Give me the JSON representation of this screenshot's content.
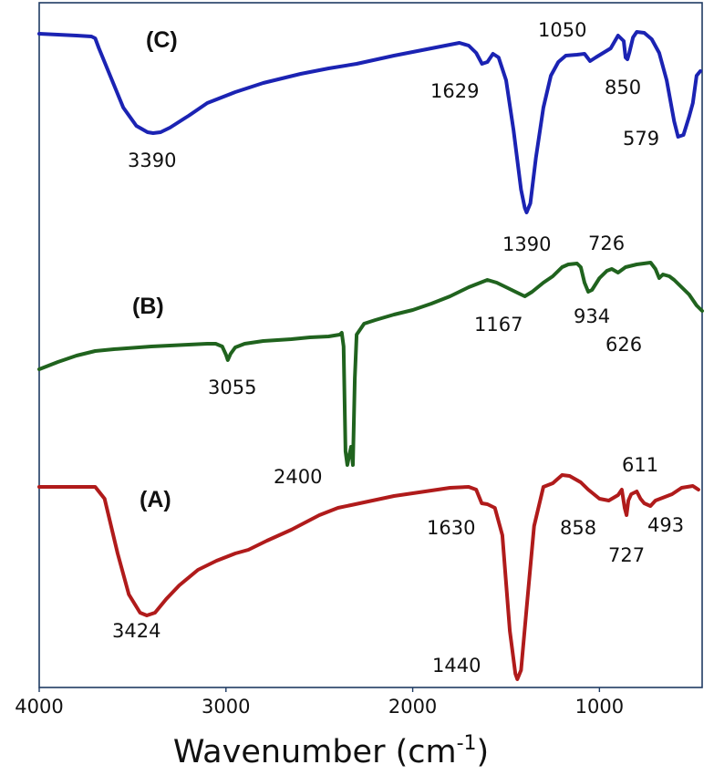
{
  "chart_data": {
    "type": "line",
    "xlabel": "Wavenumber (cm",
    "xlabel_sup": "-1",
    "xlabel_close": ")",
    "xlim": [
      4000,
      450
    ],
    "x_reversed": true,
    "ticks": [
      4000,
      3000,
      2000,
      1000
    ],
    "tick_labels": [
      "4000",
      "3000",
      "2000",
      "1000"
    ],
    "grid": false,
    "legend": "none",
    "series": [
      {
        "key": "A",
        "name": "(A)",
        "color": "#b01b1b",
        "points": [
          [
            4000,
            17
          ],
          [
            3700,
            17
          ],
          [
            3650,
            30
          ],
          [
            3580,
            90
          ],
          [
            3520,
            135
          ],
          [
            3460,
            155
          ],
          [
            3424,
            158
          ],
          [
            3380,
            155
          ],
          [
            3320,
            140
          ],
          [
            3250,
            125
          ],
          [
            3150,
            108
          ],
          [
            3050,
            98
          ],
          [
            2950,
            90
          ],
          [
            2880,
            86
          ],
          [
            2850,
            83
          ],
          [
            2780,
            76
          ],
          [
            2650,
            64
          ],
          [
            2500,
            48
          ],
          [
            2400,
            40
          ],
          [
            2330,
            37
          ],
          [
            2100,
            27
          ],
          [
            1900,
            21
          ],
          [
            1800,
            18
          ],
          [
            1700,
            17
          ],
          [
            1660,
            20
          ],
          [
            1630,
            35
          ],
          [
            1600,
            36
          ],
          [
            1560,
            40
          ],
          [
            1520,
            70
          ],
          [
            1480,
            175
          ],
          [
            1450,
            222
          ],
          [
            1440,
            228
          ],
          [
            1420,
            218
          ],
          [
            1390,
            150
          ],
          [
            1350,
            60
          ],
          [
            1300,
            17
          ],
          [
            1250,
            13
          ],
          [
            1200,
            4
          ],
          [
            1160,
            5
          ],
          [
            1100,
            12
          ],
          [
            1060,
            20
          ],
          [
            1000,
            30
          ],
          [
            950,
            32
          ],
          [
            900,
            26
          ],
          [
            880,
            20
          ],
          [
            865,
            40
          ],
          [
            855,
            48
          ],
          [
            845,
            32
          ],
          [
            830,
            25
          ],
          [
            800,
            22
          ],
          [
            780,
            30
          ],
          [
            760,
            35
          ],
          [
            727,
            38
          ],
          [
            700,
            32
          ],
          [
            611,
            25
          ],
          [
            560,
            18
          ],
          [
            500,
            16
          ],
          [
            470,
            20
          ]
        ],
        "peaks": [
          "3424",
          "2400",
          "1630",
          "1440",
          "858",
          "611",
          "727",
          "493"
        ]
      },
      {
        "key": "B",
        "name": "(B)",
        "color": "#20631e",
        "points": [
          [
            4000,
            120
          ],
          [
            3900,
            112
          ],
          [
            3800,
            105
          ],
          [
            3700,
            100
          ],
          [
            3600,
            98
          ],
          [
            3400,
            95
          ],
          [
            3200,
            93
          ],
          [
            3100,
            92
          ],
          [
            3055,
            92
          ],
          [
            3020,
            95
          ],
          [
            3000,
            104
          ],
          [
            2990,
            110
          ],
          [
            2975,
            103
          ],
          [
            2950,
            96
          ],
          [
            2900,
            92
          ],
          [
            2800,
            89
          ],
          [
            2650,
            87
          ],
          [
            2550,
            85
          ],
          [
            2450,
            84
          ],
          [
            2390,
            82
          ],
          [
            2380,
            80
          ],
          [
            2370,
            95
          ],
          [
            2360,
            210
          ],
          [
            2350,
            225
          ],
          [
            2340,
            215
          ],
          [
            2330,
            205
          ],
          [
            2320,
            225
          ],
          [
            2310,
            130
          ],
          [
            2300,
            82
          ],
          [
            2260,
            70
          ],
          [
            2200,
            66
          ],
          [
            2100,
            60
          ],
          [
            2000,
            55
          ],
          [
            1900,
            48
          ],
          [
            1800,
            40
          ],
          [
            1700,
            30
          ],
          [
            1600,
            22
          ],
          [
            1550,
            25
          ],
          [
            1500,
            30
          ],
          [
            1450,
            35
          ],
          [
            1400,
            40
          ],
          [
            1360,
            35
          ],
          [
            1300,
            25
          ],
          [
            1250,
            18
          ],
          [
            1200,
            8
          ],
          [
            1167,
            5
          ],
          [
            1120,
            4
          ],
          [
            1100,
            8
          ],
          [
            1080,
            25
          ],
          [
            1060,
            35
          ],
          [
            1040,
            33
          ],
          [
            1000,
            20
          ],
          [
            960,
            12
          ],
          [
            934,
            10
          ],
          [
            900,
            14
          ],
          [
            860,
            8
          ],
          [
            800,
            5
          ],
          [
            726,
            3
          ],
          [
            700,
            10
          ],
          [
            680,
            20
          ],
          [
            660,
            16
          ],
          [
            626,
            18
          ],
          [
            600,
            22
          ],
          [
            560,
            30
          ],
          [
            520,
            38
          ],
          [
            480,
            50
          ],
          [
            450,
            56
          ]
        ],
        "peaks": [
          "3055",
          "1167",
          "934",
          "726",
          "626"
        ]
      },
      {
        "key": "C",
        "name": "(C)",
        "color": "#1b23b3",
        "points": [
          [
            4000,
            4
          ],
          [
            3900,
            5
          ],
          [
            3800,
            6
          ],
          [
            3720,
            7
          ],
          [
            3700,
            9
          ],
          [
            3680,
            20
          ],
          [
            3620,
            50
          ],
          [
            3550,
            85
          ],
          [
            3480,
            105
          ],
          [
            3420,
            112
          ],
          [
            3390,
            113
          ],
          [
            3350,
            112
          ],
          [
            3300,
            107
          ],
          [
            3200,
            94
          ],
          [
            3100,
            80
          ],
          [
            2950,
            68
          ],
          [
            2800,
            58
          ],
          [
            2600,
            48
          ],
          [
            2450,
            42
          ],
          [
            2300,
            37
          ],
          [
            2100,
            28
          ],
          [
            1900,
            20
          ],
          [
            1750,
            14
          ],
          [
            1700,
            17
          ],
          [
            1660,
            25
          ],
          [
            1629,
            37
          ],
          [
            1600,
            35
          ],
          [
            1570,
            26
          ],
          [
            1540,
            30
          ],
          [
            1500,
            55
          ],
          [
            1460,
            110
          ],
          [
            1420,
            175
          ],
          [
            1400,
            195
          ],
          [
            1390,
            200
          ],
          [
            1370,
            190
          ],
          [
            1340,
            140
          ],
          [
            1300,
            85
          ],
          [
            1260,
            50
          ],
          [
            1220,
            35
          ],
          [
            1180,
            28
          ],
          [
            1120,
            27
          ],
          [
            1080,
            26
          ],
          [
            1050,
            34
          ],
          [
            1020,
            30
          ],
          [
            980,
            25
          ],
          [
            940,
            20
          ],
          [
            900,
            6
          ],
          [
            870,
            12
          ],
          [
            860,
            30
          ],
          [
            850,
            32
          ],
          [
            840,
            25
          ],
          [
            820,
            8
          ],
          [
            800,
            2
          ],
          [
            760,
            3
          ],
          [
            720,
            10
          ],
          [
            680,
            25
          ],
          [
            640,
            55
          ],
          [
            600,
            100
          ],
          [
            579,
            117
          ],
          [
            550,
            115
          ],
          [
            520,
            95
          ],
          [
            500,
            80
          ],
          [
            480,
            50
          ],
          [
            460,
            45
          ]
        ],
        "peaks": [
          "3390",
          "1629",
          "1390",
          "1050",
          "850",
          "579"
        ]
      }
    ]
  }
}
